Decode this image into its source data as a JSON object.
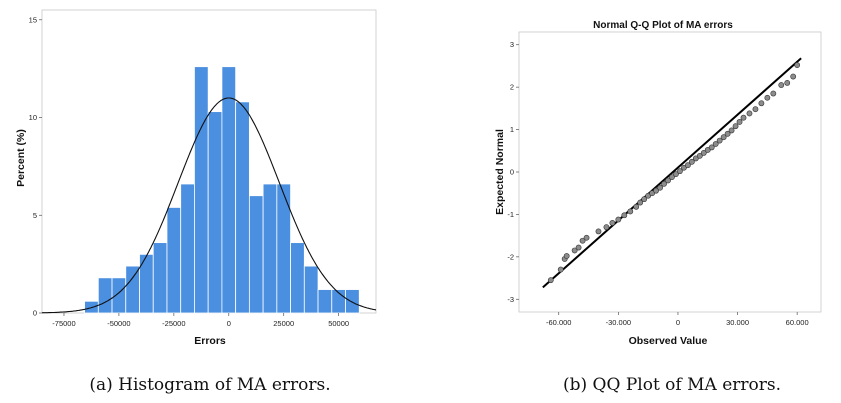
{
  "chart_data": [
    {
      "type": "bar",
      "title": "",
      "xlabel": "Errors",
      "ylabel": "Percent (%)",
      "x_ticks": [
        "-75000",
        "-50000",
        "-25000",
        "0",
        "25000",
        "50000"
      ],
      "y_ticks": [
        "0",
        "5",
        "10",
        "15"
      ],
      "xlim": [
        -85000,
        67000
      ],
      "ylim": [
        0,
        15.5
      ],
      "bin_width": 6250,
      "bin_centers": [
        -62500,
        -56250,
        -50000,
        -43750,
        -37500,
        -31250,
        -25000,
        -18750,
        -12500,
        -6250,
        0,
        6250,
        12500,
        18750,
        25000,
        31250,
        37500,
        43750,
        50000,
        56250
      ],
      "values": [
        0.6,
        1.8,
        1.8,
        2.4,
        3.0,
        3.6,
        5.4,
        6.6,
        12.6,
        10.3,
        12.6,
        10.8,
        6.0,
        6.6,
        6.6,
        3.6,
        2.4,
        1.2,
        1.2,
        1.2
      ],
      "normal_curve": {
        "mean": 0,
        "sd": 23000,
        "peak": 11.0
      },
      "bar_color": "#4a8fe0",
      "caption": "(a) Histogram of MA errors."
    },
    {
      "type": "scatter",
      "title": "Normal Q-Q Plot of MA errors",
      "xlabel": "Observed Value",
      "ylabel": "Expected Normal",
      "x_ticks": [
        "-60.000",
        "-30.000",
        "0",
        "30.000",
        "60.000"
      ],
      "y_ticks": [
        "3",
        "2",
        "1",
        "0",
        "-1",
        "-2",
        "-3"
      ],
      "xlim": [
        -80000,
        72000
      ],
      "ylim": [
        -3.3,
        3.3
      ],
      "reference_line": [
        [
          -68000,
          -2.72
        ],
        [
          62000,
          2.68
        ]
      ],
      "points": [
        [
          -64000,
          -2.55
        ],
        [
          -59000,
          -2.3
        ],
        [
          -57000,
          -2.05
        ],
        [
          -56000,
          -1.98
        ],
        [
          -52000,
          -1.85
        ],
        [
          -50000,
          -1.78
        ],
        [
          -48000,
          -1.62
        ],
        [
          -46000,
          -1.55
        ],
        [
          -40000,
          -1.4
        ],
        [
          -36000,
          -1.3
        ],
        [
          -33000,
          -1.2
        ],
        [
          -30000,
          -1.12
        ],
        [
          -27000,
          -1.02
        ],
        [
          -24000,
          -0.93
        ],
        [
          -21000,
          -0.82
        ],
        [
          -19000,
          -0.72
        ],
        [
          -17000,
          -0.64
        ],
        [
          -15000,
          -0.56
        ],
        [
          -13000,
          -0.5
        ],
        [
          -11000,
          -0.44
        ],
        [
          -9000,
          -0.37
        ],
        [
          -7000,
          -0.28
        ],
        [
          -5000,
          -0.2
        ],
        [
          -3000,
          -0.12
        ],
        [
          -1000,
          -0.05
        ],
        [
          1000,
          0.02
        ],
        [
          3000,
          0.1
        ],
        [
          5000,
          0.16
        ],
        [
          7000,
          0.24
        ],
        [
          9000,
          0.32
        ],
        [
          11000,
          0.38
        ],
        [
          13000,
          0.45
        ],
        [
          15000,
          0.52
        ],
        [
          17000,
          0.58
        ],
        [
          19000,
          0.66
        ],
        [
          21000,
          0.74
        ],
        [
          23000,
          0.82
        ],
        [
          25000,
          0.9
        ],
        [
          27000,
          0.98
        ],
        [
          29000,
          1.08
        ],
        [
          31000,
          1.18
        ],
        [
          33000,
          1.28
        ],
        [
          36000,
          1.38
        ],
        [
          39000,
          1.48
        ],
        [
          42000,
          1.62
        ],
        [
          45000,
          1.75
        ],
        [
          48000,
          1.85
        ],
        [
          52000,
          2.05
        ],
        [
          55000,
          2.1
        ],
        [
          58000,
          2.25
        ],
        [
          60000,
          2.52
        ]
      ],
      "point_color": "#8c8c8c",
      "caption": "(b) QQ Plot of MA errors."
    }
  ]
}
